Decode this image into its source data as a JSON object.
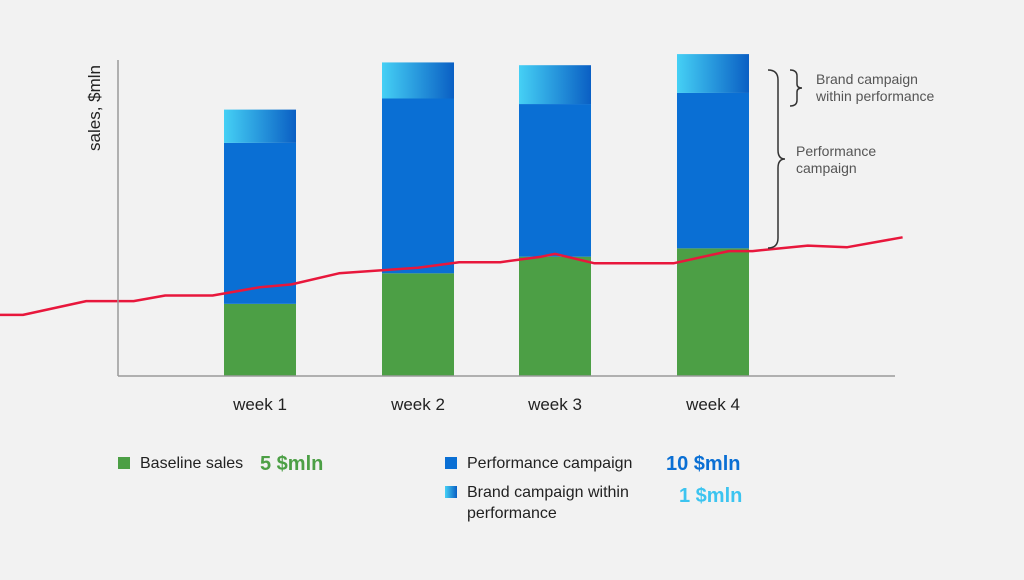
{
  "chart_data": {
    "type": "bar",
    "stacked": true,
    "ylabel": "sales, $mln",
    "xlabel": "",
    "categories": [
      "week 1",
      "week 2",
      "week 3",
      "week 4"
    ],
    "series": [
      {
        "name": "Baseline sales",
        "values": [
          1.3,
          1.85,
          2.15,
          2.3
        ],
        "color": "#4c9f45"
      },
      {
        "name": "Performance campaign",
        "values": [
          2.9,
          3.15,
          2.75,
          2.8
        ],
        "color": "#0a6fd4"
      },
      {
        "name": "Brand campaign within performance",
        "values": [
          0.6,
          0.65,
          0.7,
          0.7
        ],
        "color": "#3cc4f0"
      }
    ],
    "line": {
      "color": "#e8173c",
      "points": [
        [
          -2.5,
          1.1
        ],
        [
          -1.5,
          1.1
        ],
        [
          -1.1,
          1.35
        ],
        [
          -0.8,
          1.35
        ],
        [
          -0.6,
          1.45
        ],
        [
          -0.3,
          1.45
        ],
        [
          0.0,
          1.6
        ],
        [
          0.2,
          1.65
        ],
        [
          0.5,
          1.85
        ],
        [
          0.85,
          1.92
        ],
        [
          1.0,
          1.95
        ],
        [
          1.3,
          2.05
        ],
        [
          1.6,
          2.05
        ],
        [
          1.9,
          2.15
        ],
        [
          2.0,
          2.2
        ],
        [
          2.25,
          2.03
        ],
        [
          2.75,
          2.03
        ],
        [
          3.1,
          2.25
        ],
        [
          3.25,
          2.25
        ],
        [
          3.6,
          2.35
        ],
        [
          3.85,
          2.32
        ],
        [
          4.2,
          2.5
        ]
      ]
    },
    "ylim": [
      0,
      6.0
    ],
    "grid": false
  },
  "annotations": {
    "brand_bracket": "Brand campaign within performance",
    "performance_bracket": "Performance campaign"
  },
  "legend": {
    "baseline": {
      "label": "Baseline sales",
      "value": "5 $mln",
      "value_color": "#4c9f45"
    },
    "performance": {
      "label": "Performance campaign",
      "value": "10 $mln",
      "value_color": "#0a6fd4"
    },
    "brand": {
      "label": "Brand campaign within performance",
      "value": "1 $mln",
      "value_color": "#3cc4f0"
    }
  }
}
